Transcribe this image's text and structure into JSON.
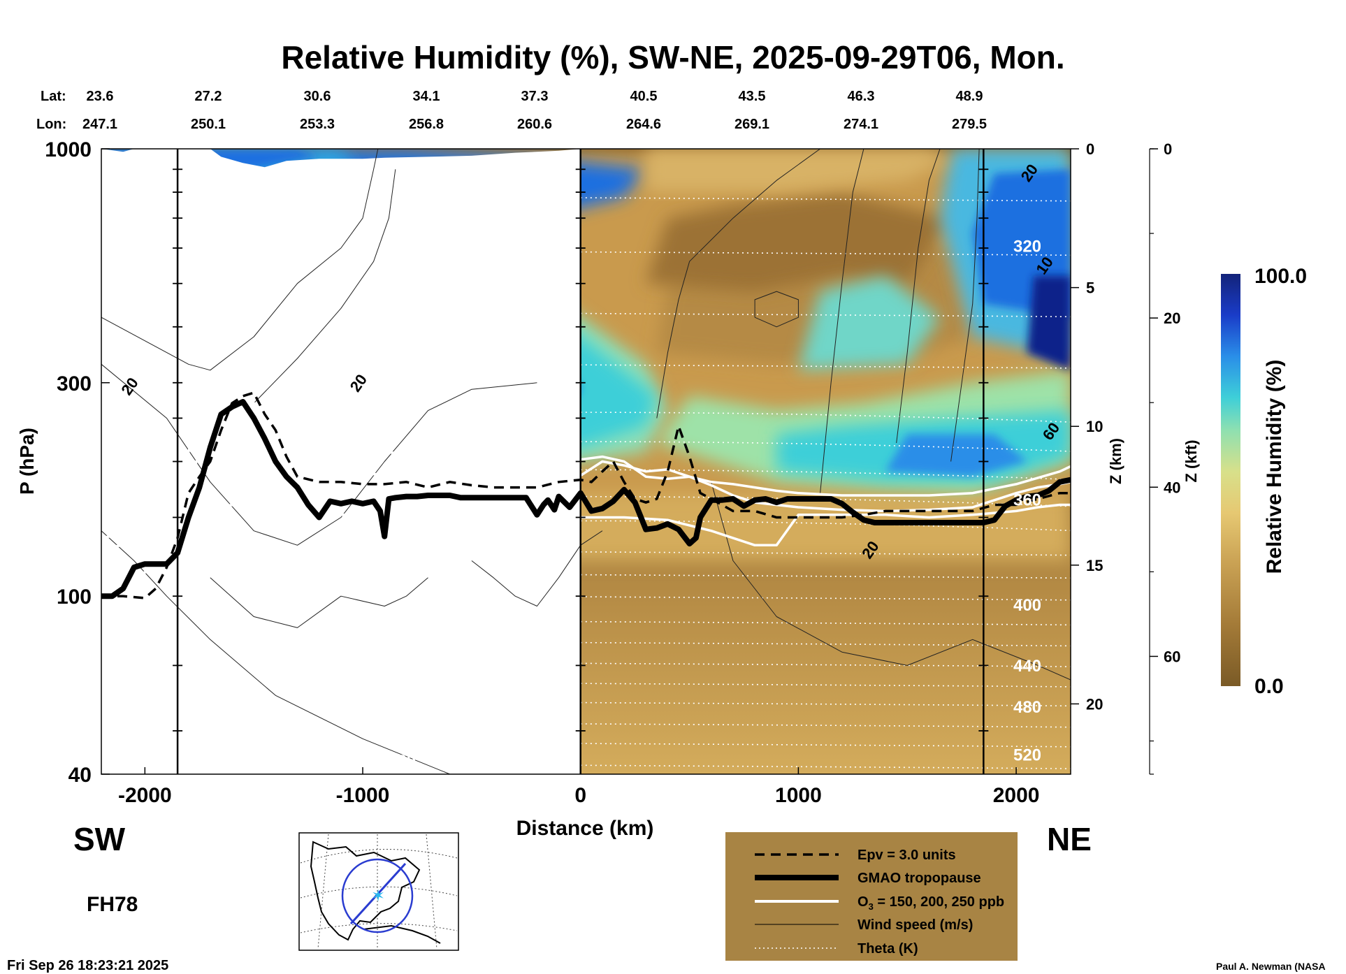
{
  "chart_data": {
    "type": "heatmap",
    "title": "Relative Humidity (%), SW-NE, 2025-09-29T06, Mon.",
    "xlabel": "Distance (km)",
    "ylabel": "P (hPa)",
    "z_km_label": "Z (km)",
    "z_kft_label": "Z (kft)",
    "colorbar_label": "Relative Humidity (%)",
    "colorbar_max": "100.0",
    "colorbar_min": "0.0",
    "colorbar_range": [
      0,
      100
    ],
    "xlim": [
      -2200,
      2250
    ],
    "ylim": [
      1000,
      40
    ],
    "y_scale": "log",
    "x_ticks": [
      {
        "v": -2000,
        "label": "-2000"
      },
      {
        "v": -1000,
        "label": "-1000"
      },
      {
        "v": 0,
        "label": "0"
      },
      {
        "v": 1000,
        "label": "1000"
      },
      {
        "v": 2000,
        "label": "2000"
      }
    ],
    "p_ticks": [
      {
        "v": 40,
        "label": "40"
      },
      {
        "v": 100,
        "label": "100"
      },
      {
        "v": 300,
        "label": "300"
      },
      {
        "v": 1000,
        "label": "1000"
      }
    ],
    "z_km_ticks": [
      {
        "v": 0,
        "label": "0"
      },
      {
        "v": 5,
        "label": "5"
      },
      {
        "v": 10,
        "label": "10"
      },
      {
        "v": 15,
        "label": "15"
      },
      {
        "v": 20,
        "label": "20"
      }
    ],
    "z_kft_ticks": [
      {
        "v": 0,
        "label": "0"
      },
      {
        "v": 20,
        "label": "20"
      },
      {
        "v": 40,
        "label": "40"
      },
      {
        "v": 60,
        "label": "60"
      }
    ],
    "lat_label": "Lat:",
    "lon_label": "Lon:",
    "lat_values": [
      "23.6",
      "27.2",
      "30.6",
      "34.1",
      "37.3",
      "40.5",
      "43.5",
      "46.3",
      "48.9"
    ],
    "lon_values": [
      "247.1",
      "250.1",
      "253.3",
      "256.8",
      "260.6",
      "264.6",
      "269.1",
      "274.1",
      "279.5"
    ],
    "vertical_lines_x": [
      -1850,
      0,
      1850
    ],
    "theta_levels": [
      {
        "label": "520",
        "p": 43
      },
      {
        "label": "480",
        "p": 55
      },
      {
        "label": "440",
        "p": 68
      },
      {
        "label": "400",
        "p": 93
      },
      {
        "label": "360",
        "p": 160
      },
      {
        "label": "320",
        "p": 590
      }
    ],
    "theta_lines_p": [
      42,
      47,
      52,
      58,
      64,
      71,
      79,
      88,
      100,
      112,
      126,
      143,
      162,
      186,
      215,
      250,
      330,
      430,
      590,
      780
    ],
    "tropopause": {
      "x": [
        -2200,
        -2150,
        -2100,
        -2050,
        -2000,
        -1950,
        -1900,
        -1850,
        -1800,
        -1750,
        -1700,
        -1650,
        -1600,
        -1550,
        -1500,
        -1450,
        -1400,
        -1350,
        -1300,
        -1250,
        -1200,
        -1150,
        -1100,
        -1050,
        -1000,
        -950,
        -920,
        -900,
        -880,
        -850,
        -800,
        -750,
        -700,
        -650,
        -600,
        -550,
        -500,
        -450,
        -400,
        -350,
        -300,
        -250,
        -200,
        -170,
        -150,
        -120,
        -100,
        -50,
        0,
        50,
        100,
        150,
        200,
        250,
        300,
        350,
        400,
        450,
        500,
        530,
        550,
        600,
        650,
        700,
        750,
        800,
        850,
        900,
        950,
        1000,
        1050,
        1100,
        1150,
        1200,
        1250,
        1300,
        1350,
        1400,
        1450,
        1500,
        1550,
        1600,
        1650,
        1700,
        1750,
        1800,
        1850,
        1900,
        1950,
        2000,
        2050,
        2100,
        2150,
        2200,
        2250
      ],
      "p": [
        100,
        100,
        104,
        116,
        118,
        118,
        118,
        125,
        150,
        175,
        215,
        255,
        265,
        272,
        250,
        225,
        200,
        185,
        175,
        160,
        150,
        163,
        161,
        163,
        161,
        163,
        155,
        136,
        165,
        166,
        167,
        167,
        168,
        168,
        168,
        166,
        166,
        166,
        166,
        166,
        166,
        166,
        152,
        160,
        164,
        156,
        167,
        158,
        170,
        155,
        157,
        163,
        173,
        162,
        141,
        142,
        145,
        141,
        131,
        135,
        150,
        164,
        164,
        165,
        159,
        164,
        165,
        162,
        165,
        165,
        165,
        165,
        165,
        161,
        154,
        148,
        146,
        146,
        146,
        146,
        146,
        146,
        146,
        146,
        146,
        146,
        146,
        148,
        159,
        164,
        167,
        168,
        172,
        180,
        182
      ]
    },
    "epv": {
      "label_value": 3.0,
      "x": [
        -2200,
        -2100,
        -2000,
        -1950,
        -1900,
        -1850,
        -1800,
        -1750,
        -1700,
        -1650,
        -1600,
        -1550,
        -1500,
        -1450,
        -1400,
        -1350,
        -1300,
        -1200,
        -1100,
        -1000,
        -900,
        -800,
        -700,
        -600,
        -500,
        -400,
        -300,
        -200,
        -100,
        0,
        50,
        100,
        150,
        200,
        250,
        300,
        350,
        400,
        450,
        500,
        550,
        600,
        700,
        800,
        900,
        1000,
        1100,
        1200,
        1300,
        1400,
        1500,
        1600,
        1700,
        1800,
        1900,
        2000,
        2100,
        2200,
        2250
      ],
      "p": [
        100,
        100,
        99,
        104,
        116,
        135,
        170,
        185,
        200,
        235,
        270,
        280,
        285,
        255,
        235,
        205,
        185,
        180,
        180,
        178,
        178,
        180,
        175,
        180,
        177,
        175,
        175,
        175,
        180,
        182,
        180,
        190,
        200,
        180,
        165,
        162,
        165,
        190,
        240,
        205,
        170,
        165,
        155,
        155,
        150,
        150,
        150,
        150,
        152,
        155,
        155,
        155,
        155,
        155,
        160,
        160,
        165,
        170,
        170
      ]
    },
    "ozone_lines": [
      {
        "label": "150 ppb",
        "x": [
          -2200,
          -2100,
          -2000,
          -1900,
          -1850,
          -1800,
          -1750,
          -1700,
          -1650,
          -1600,
          -1550,
          -1500,
          -1400,
          -1300,
          -1200,
          -1000,
          -800,
          -600,
          -400,
          -200,
          0,
          200,
          400,
          600,
          800,
          900,
          1000,
          1200,
          1400,
          1600,
          1800,
          2000,
          2100,
          2200,
          2250
        ],
        "p": [
          110,
          111,
          113,
          118,
          124,
          130,
          145,
          155,
          158,
          160,
          156,
          155,
          154,
          153,
          152,
          152,
          151,
          150,
          149,
          149,
          150,
          150,
          148,
          140,
          130,
          130,
          152,
          152,
          152,
          150,
          152,
          155,
          158,
          160,
          160
        ]
      },
      {
        "label": "200 ppb",
        "x": [
          -2200,
          -2100,
          -2000,
          -1900,
          -1850,
          -1800,
          -1750,
          -1700,
          -1650,
          -1600,
          -1550,
          -1500,
          -1400,
          -1300,
          -1200,
          -1100,
          -1000,
          -800,
          -600,
          -400,
          -200,
          0,
          100,
          200,
          300,
          400,
          500,
          600,
          700,
          800,
          1000,
          1200,
          1400,
          1600,
          1800,
          2000,
          2100,
          2200,
          2250
        ],
        "p": [
          128,
          130,
          133,
          138,
          150,
          175,
          210,
          235,
          262,
          272,
          270,
          255,
          220,
          200,
          192,
          190,
          188,
          186,
          185,
          184,
          184,
          186,
          200,
          196,
          190,
          192,
          185,
          177,
          168,
          162,
          158,
          156,
          155,
          156,
          158,
          170,
          175,
          178,
          180
        ]
      },
      {
        "label": "250 ppb",
        "x": [
          -2200,
          -2000,
          -1900,
          -1850,
          -1800,
          -1750,
          -1700,
          -1650,
          -1600,
          -1550,
          -1500,
          -1400,
          -1300,
          -1200,
          -1100,
          -1000,
          -800,
          -600,
          -400,
          -200,
          0,
          100,
          200,
          300,
          400,
          500,
          600,
          700,
          800,
          900,
          1000,
          1200,
          1400,
          1600,
          1800,
          2000,
          2200,
          2250
        ],
        "p": [
          135,
          140,
          150,
          175,
          210,
          260,
          295,
          300,
          298,
          285,
          270,
          255,
          240,
          228,
          218,
          212,
          208,
          205,
          204,
          203,
          202,
          205,
          200,
          185,
          183,
          185,
          180,
          178,
          175,
          172,
          170,
          168,
          168,
          168,
          170,
          178,
          190,
          195
        ]
      }
    ],
    "wind_labels": [
      {
        "label": "20",
        "x": -2050,
        "p": 290
      },
      {
        "label": "20",
        "x": -1000,
        "p": 295
      },
      {
        "label": "20",
        "x": 1350,
        "p": 125
      },
      {
        "label": "60",
        "x": 2180,
        "p": 230
      },
      {
        "label": "10",
        "x": 2150,
        "p": 540
      },
      {
        "label": "20",
        "x": 2080,
        "p": 870
      }
    ],
    "legend": {
      "epv": "Epv = 3.0 units",
      "tropopause": "GMAO tropopause",
      "ozone_prefix": "O",
      "ozone_sub": "3",
      "ozone_suffix": " = 150, 200, 250 ppb",
      "wind": "Wind speed (m/s)",
      "theta": "Theta (K)"
    },
    "colors": {
      "dry_dark": "#6b4a1a",
      "dry_mid": "#a57a38",
      "dry_light": "#d9b060",
      "moist_light": "#e8e080",
      "cyan": "#3ecfd8",
      "blue": "#1f6fe0",
      "navy": "#10208a",
      "legend_bg": "#a88444"
    }
  },
  "labels": {
    "sw": "SW",
    "ne": "NE",
    "forecast_hour": "FH78",
    "timestamp": "Fri Sep 26 18:23:21 2025",
    "credit": "Paul A. Newman (NASA"
  }
}
